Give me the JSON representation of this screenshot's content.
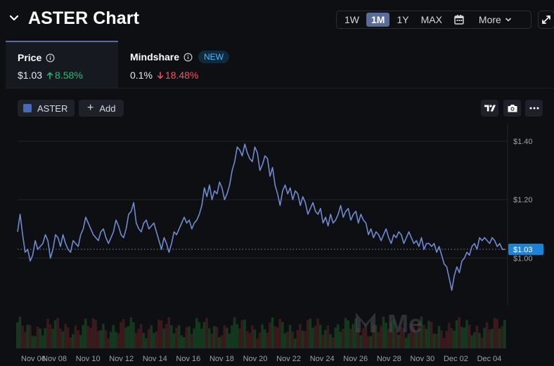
{
  "header": {
    "title": "ASTER Chart",
    "ranges": [
      "1W",
      "1M",
      "1Y",
      "MAX"
    ],
    "active_range": "1M",
    "more_label": "More"
  },
  "tabs": {
    "price": {
      "label": "Price",
      "value": "$1.03",
      "change": "8.58%",
      "direction": "up"
    },
    "mindshare": {
      "label": "Mindshare",
      "badge": "NEW",
      "value": "0.1%",
      "change": "18.48%",
      "direction": "down"
    }
  },
  "toolbar": {
    "legend_label": "ASTER",
    "add_label": "Add"
  },
  "colors": {
    "line": "#6f8bd0",
    "up_change": "#1fc46e",
    "down_change": "#ff4d5e",
    "price_badge": "#1c84d6",
    "volume_up": "#14391f",
    "volume_down": "#3a1a1c"
  },
  "chart_data": {
    "type": "line",
    "series": [
      {
        "name": "ASTER",
        "values": [
          1.09,
          1.15,
          1.08,
          1.02,
          1.03,
          0.99,
          1.01,
          1.06,
          1.03,
          1.04,
          1.05,
          1.08,
          1.06,
          1.0,
          1.03,
          1.08,
          1.07,
          1.04,
          1.08,
          1.05,
          1.03,
          1.02,
          1.06,
          1.05,
          1.04,
          1.08,
          1.1,
          1.14,
          1.12,
          1.1,
          1.08,
          1.07,
          1.06,
          1.09,
          1.1,
          1.07,
          1.05,
          1.07,
          1.09,
          1.13,
          1.11,
          1.08,
          1.07,
          1.1,
          1.15,
          1.16,
          1.19,
          1.12,
          1.1,
          1.09,
          1.12,
          1.13,
          1.1,
          1.11,
          1.12,
          1.09,
          1.06,
          1.03,
          1.07,
          1.05,
          1.02,
          1.05,
          1.09,
          1.08,
          1.1,
          1.12,
          1.14,
          1.12,
          1.13,
          1.1,
          1.12,
          1.13,
          1.15,
          1.18,
          1.24,
          1.21,
          1.25,
          1.2,
          1.23,
          1.22,
          1.26,
          1.24,
          1.2,
          1.22,
          1.25,
          1.3,
          1.33,
          1.38,
          1.37,
          1.35,
          1.39,
          1.36,
          1.34,
          1.33,
          1.38,
          1.36,
          1.3,
          1.32,
          1.35,
          1.34,
          1.28,
          1.31,
          1.25,
          1.22,
          1.18,
          1.23,
          1.25,
          1.22,
          1.24,
          1.2,
          1.23,
          1.22,
          1.18,
          1.21,
          1.19,
          1.15,
          1.17,
          1.19,
          1.16,
          1.15,
          1.17,
          1.12,
          1.14,
          1.11,
          1.15,
          1.12,
          1.13,
          1.15,
          1.18,
          1.14,
          1.16,
          1.17,
          1.13,
          1.15,
          1.16,
          1.12,
          1.15,
          1.13,
          1.12,
          1.08,
          1.1,
          1.07,
          1.09,
          1.08,
          1.06,
          1.08,
          1.1,
          1.07,
          1.05,
          1.08,
          1.07,
          1.09,
          1.08,
          1.05,
          1.07,
          1.09,
          1.07,
          1.05,
          1.06,
          1.04,
          1.07,
          1.03,
          1.05,
          1.05,
          1.04,
          1.05,
          1.02,
          1.04,
          1.01,
          0.98,
          0.97,
          0.93,
          0.89,
          0.94,
          0.97,
          0.95,
          0.99,
          1.0,
          1.02,
          1.01,
          1.04,
          1.05,
          1.03,
          1.07,
          1.06,
          1.07,
          1.06,
          1.05,
          1.07,
          1.06,
          1.04,
          1.05,
          1.03,
          1.03
        ]
      }
    ],
    "x_ticks": [
      "Nov 06",
      "Nov 08",
      "Nov 10",
      "Nov 12",
      "Nov 14",
      "Nov 16",
      "Nov 18",
      "Nov 20",
      "Nov 22",
      "Nov 24",
      "Nov 26",
      "Nov 28",
      "Nov 30",
      "Dec 02",
      "Dec 04"
    ],
    "y_ticks": [
      "$1.00",
      "$1.20",
      "$1.40"
    ],
    "y_tick_values": [
      1.0,
      1.2,
      1.4
    ],
    "ylim": [
      0.84,
      1.46
    ],
    "current_value": 1.03,
    "current_label": "$1.03",
    "grid": "horizontal",
    "volume_bars": "shown",
    "watermark": "Me"
  }
}
